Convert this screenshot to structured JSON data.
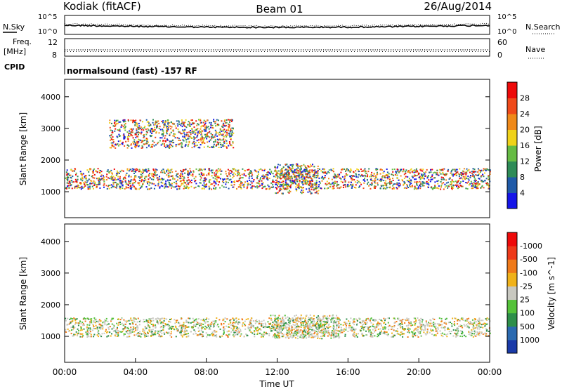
{
  "header": {
    "site": "Kodiak (fitACF)",
    "beam": "Beam 01",
    "date": "26/Aug/2014"
  },
  "top_panels": {
    "nsky_label": "N.Sky",
    "nsky_ticks": [
      "10^5",
      "10^0"
    ],
    "nsearch_label": "N.Search",
    "nsearch_ticks": [
      "10^5",
      "10^0"
    ],
    "freq_label_1": "Freq.",
    "freq_label_2": "[MHz]",
    "freq_ticks": [
      "12",
      "8"
    ],
    "nave_label": "Nave",
    "nave_ticks": [
      "60",
      "0"
    ],
    "cpid_label": "CPID",
    "cpid_text": "normalsound (fast) -157 RF"
  },
  "chart_data": [
    {
      "type": "heatmap",
      "name": "power",
      "ylabel": "Slant Range [km]",
      "yticks": [
        "1000",
        "2000",
        "3000",
        "4000"
      ],
      "ylim": [
        180,
        4550
      ],
      "colorbar_label": "Power [dB]",
      "colorbar_ticks": [
        "4",
        "8",
        "12",
        "16",
        "20",
        "24",
        "28"
      ],
      "colorbar_colors": [
        "#1515e8",
        "#1f5aa8",
        "#2e8b57",
        "#66bb44",
        "#f0d21a",
        "#f08a1a",
        "#f04a1a",
        "#ee0a0a"
      ],
      "regions": [
        {
          "desc": "main band",
          "t0": 0.0,
          "t1": 24.0,
          "r0": 1100,
          "r1": 1750
        },
        {
          "desc": "strong echo",
          "t0": 11.8,
          "t1": 14.3,
          "r0": 950,
          "r1": 1900
        },
        {
          "desc": "upper patches",
          "t0": 2.5,
          "t1": 9.5,
          "r0": 2400,
          "r1": 3300
        }
      ]
    },
    {
      "type": "heatmap",
      "name": "velocity",
      "ylabel": "Slant Range [km]",
      "yticks": [
        "1000",
        "2000",
        "3000",
        "4000"
      ],
      "ylim": [
        180,
        4550
      ],
      "colorbar_label": "Velocity [m s^-1]",
      "colorbar_ticks": [
        "1000",
        "500",
        "100",
        "25",
        "-25",
        "-100",
        "-500",
        "-1000"
      ],
      "colorbar_colors": [
        "#1a3aa8",
        "#2b6ab0",
        "#2e8f4a",
        "#55c23a",
        "#c8c8c0",
        "#f0b21a",
        "#f07a1a",
        "#ee3a1a",
        "#ee0a0a"
      ],
      "regions": [
        {
          "desc": "ground scatter band",
          "t0": 0.0,
          "t1": 24.0,
          "r0": 1000,
          "r1": 1600
        },
        {
          "desc": "flow echo",
          "t0": 11.5,
          "t1": 15.5,
          "r0": 950,
          "r1": 1700
        }
      ]
    }
  ],
  "xaxis": {
    "label": "Time UT",
    "ticks": [
      "00:00",
      "04:00",
      "08:00",
      "12:00",
      "16:00",
      "20:00",
      "00:00"
    ]
  }
}
